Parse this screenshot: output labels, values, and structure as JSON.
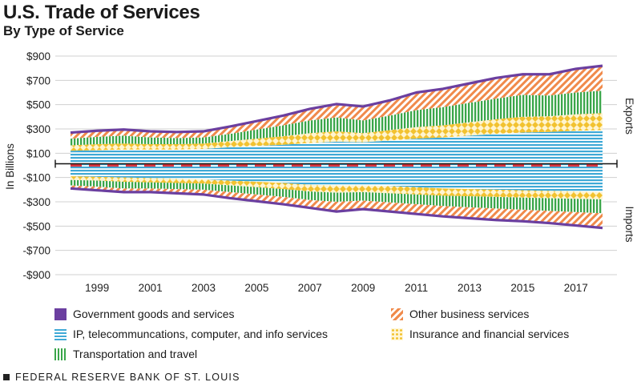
{
  "header": {
    "title": "U.S. Trade of Services",
    "subtitle": "By Type of Service"
  },
  "footer": {
    "source": "FEDERAL RESERVE BANK OF ST. LOUIS"
  },
  "colors": {
    "government": "#6b3fa0",
    "ip": "#3fa9d6",
    "transport": "#3aa64a",
    "other": "#f08a4b",
    "insurance": "#f2c230",
    "zero_line": "#d9363e"
  },
  "chart_data": {
    "type": "area",
    "title": "U.S. Trade of Services",
    "subtitle": "By Type of Service",
    "ylabel": "In Billions",
    "ylim": [
      -900,
      900
    ],
    "yticks": [
      900,
      700,
      500,
      300,
      100,
      -100,
      -300,
      -500,
      -700,
      -900
    ],
    "ytick_labels": [
      "$900",
      "$700",
      "$500",
      "$300",
      "$100",
      "-$100",
      "-$300",
      "-$500",
      "-$700",
      "-$900"
    ],
    "xticks": [
      1999,
      2001,
      2003,
      2005,
      2007,
      2009,
      2011,
      2013,
      2015,
      2017
    ],
    "side_labels": {
      "top": "Exports",
      "bottom": "Imports"
    },
    "x": [
      1998,
      1999,
      2000,
      2001,
      2002,
      2003,
      2004,
      2005,
      2006,
      2007,
      2008,
      2009,
      2010,
      2011,
      2012,
      2013,
      2014,
      2015,
      2016,
      2017,
      2018
    ],
    "series": [
      {
        "name": "IP, telecommuncations, computer, and info services",
        "key": "ip",
        "pattern": "hlines",
        "exports": [
          120,
          125,
          130,
          130,
          130,
          135,
          150,
          160,
          170,
          185,
          195,
          190,
          205,
          220,
          230,
          245,
          260,
          270,
          275,
          285,
          290
        ],
        "imports": [
          -90,
          -95,
          -100,
          -105,
          -110,
          -115,
          -125,
          -135,
          -145,
          -160,
          -165,
          -165,
          -170,
          -180,
          -190,
          -195,
          -200,
          -205,
          -210,
          -215,
          -220
        ]
      },
      {
        "name": "Insurance and financial services",
        "key": "insurance",
        "pattern": "diamonds",
        "exports": [
          45,
          50,
          50,
          45,
          45,
          45,
          50,
          60,
          70,
          80,
          85,
          75,
          85,
          95,
          100,
          110,
          120,
          130,
          130,
          135,
          140
        ],
        "imports": [
          -30,
          -30,
          -35,
          -35,
          -35,
          -35,
          -40,
          -45,
          -50,
          -55,
          -60,
          -55,
          -60,
          -60,
          -60,
          -60,
          -60,
          -60,
          -60,
          -60,
          -60
        ]
      },
      {
        "name": "Transportation and travel",
        "key": "transport",
        "pattern": "vlines",
        "exports": [
          55,
          60,
          65,
          55,
          50,
          50,
          60,
          75,
          90,
          105,
          115,
          105,
          120,
          140,
          150,
          160,
          170,
          180,
          170,
          180,
          185
        ],
        "imports": [
          -45,
          -50,
          -55,
          -50,
          -50,
          -50,
          -55,
          -60,
          -65,
          -70,
          -75,
          -70,
          -75,
          -80,
          -85,
          -90,
          -95,
          -100,
          -105,
          -110,
          -115
        ]
      },
      {
        "name": "Other business services",
        "key": "other",
        "pattern": "diagonal",
        "exports": [
          45,
          45,
          45,
          45,
          45,
          45,
          55,
          65,
          75,
          90,
          105,
          110,
          120,
          140,
          145,
          155,
          165,
          165,
          170,
          190,
          200
        ],
        "imports": [
          -20,
          -25,
          -25,
          -25,
          -30,
          -35,
          -45,
          -50,
          -55,
          -60,
          -75,
          -65,
          -70,
          -75,
          -80,
          -85,
          -90,
          -90,
          -95,
          -105,
          -115
        ]
      },
      {
        "name": "Government goods and services",
        "key": "government",
        "pattern": "solid_line",
        "exports": [
          5,
          5,
          5,
          5,
          5,
          5,
          5,
          5,
          5,
          5,
          5,
          5,
          5,
          5,
          5,
          5,
          5,
          5,
          5,
          5,
          5
        ],
        "imports": [
          -5,
          -5,
          -5,
          -5,
          -5,
          -5,
          -5,
          -5,
          -5,
          -5,
          -5,
          -5,
          -5,
          -5,
          -5,
          -5,
          -5,
          -5,
          -5,
          -5,
          -5
        ]
      }
    ],
    "legend": [
      {
        "key": "government",
        "label": "Government goods and services"
      },
      {
        "key": "other",
        "label": "Other business services"
      },
      {
        "key": "ip",
        "label": "IP, telecommuncations, computer, and info services"
      },
      {
        "key": "insurance",
        "label": "Insurance and financial services"
      },
      {
        "key": "transport",
        "label": "Transportation and travel"
      }
    ]
  }
}
